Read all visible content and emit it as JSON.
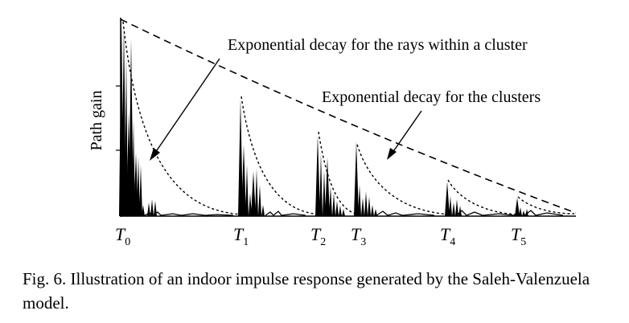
{
  "diagram": {
    "ylabel": "Path gain",
    "annotations": {
      "rays": "Exponential decay for the rays within a cluster",
      "clusters": "Exponential decay for the clusters"
    },
    "ticks": [
      {
        "letter": "T",
        "sub": "0"
      },
      {
        "letter": "T",
        "sub": "1"
      },
      {
        "letter": "T",
        "sub": "2"
      },
      {
        "letter": "T",
        "sub": "3"
      },
      {
        "letter": "T",
        "sub": "4"
      },
      {
        "letter": "T",
        "sub": "5"
      }
    ]
  },
  "caption": {
    "text": "Fig. 6.  Illustration of an indoor impulse response generated by the Saleh-Valenzuela model."
  }
}
